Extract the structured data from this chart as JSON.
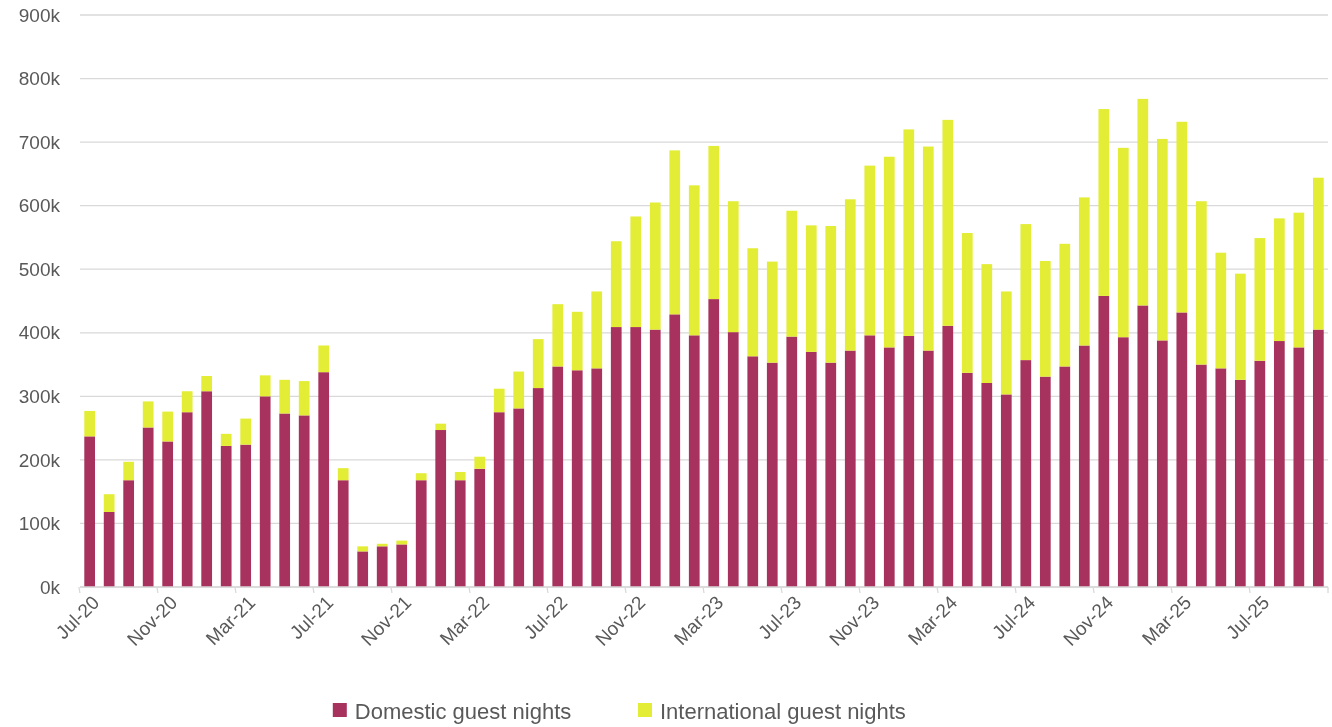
{
  "chart_data": {
    "type": "bar",
    "stacked": true,
    "grid": "y",
    "legend": "bottom",
    "categories": [
      "Jul-20",
      null,
      null,
      null,
      "Nov-20",
      null,
      null,
      null,
      "Mar-21",
      null,
      null,
      null,
      "Jul-21",
      null,
      null,
      null,
      "Nov-21",
      null,
      null,
      null,
      "Mar-22",
      null,
      null,
      null,
      "Jul-22",
      null,
      null,
      null,
      "Nov-22",
      null,
      null,
      null,
      "Mar-23",
      null,
      null,
      null,
      "Jul-23",
      null,
      null,
      null,
      "Nov-23",
      null,
      null,
      null,
      "Mar-24",
      null,
      null,
      null,
      "Jul-24",
      null,
      null,
      null,
      "Nov-24",
      null,
      null,
      null,
      "Mar-25",
      null,
      null,
      null,
      "Jul-25",
      null,
      null,
      null
    ],
    "ylim": [
      0,
      900000
    ],
    "yticks": [
      {
        "value": 0,
        "label": "0k"
      },
      {
        "value": 100000,
        "label": "100k"
      },
      {
        "value": 200000,
        "label": "200k"
      },
      {
        "value": 300000,
        "label": "300k"
      },
      {
        "value": 400000,
        "label": "400k"
      },
      {
        "value": 500000,
        "label": "500k"
      },
      {
        "value": 600000,
        "label": "600k"
      },
      {
        "value": 700000,
        "label": "700k"
      },
      {
        "value": 800000,
        "label": "800k"
      },
      {
        "value": 900000,
        "label": "900k"
      }
    ],
    "series": [
      {
        "name": "Domestic guest nights",
        "color": "#a8325e",
        "values": [
          237000,
          118000,
          168000,
          251000,
          229000,
          275000,
          308000,
          222000,
          224000,
          300000,
          273000,
          270000,
          338000,
          168000,
          56000,
          64000,
          67000,
          168000,
          247000,
          168000,
          186000,
          275000,
          281000,
          313000,
          347000,
          341000,
          344000,
          409000,
          409000,
          405000,
          429000,
          396000,
          453000,
          401000,
          363000,
          353000,
          394000,
          370000,
          353000,
          372000,
          396000,
          377000,
          395000,
          372000,
          411000,
          337000,
          321000,
          303000,
          357000,
          331000,
          347000,
          380000,
          458000,
          393000,
          443000,
          388000,
          432000,
          350000,
          344000,
          326000,
          356000,
          387000,
          377000,
          405000
        ]
      },
      {
        "name": "International guest nights",
        "color": "#e3ed35",
        "values": [
          40000,
          28000,
          29000,
          41000,
          47000,
          33000,
          24000,
          19000,
          41000,
          33000,
          53000,
          54000,
          42000,
          19000,
          8000,
          4000,
          6000,
          11000,
          10000,
          13000,
          19000,
          37000,
          58000,
          77000,
          98000,
          92000,
          121000,
          135000,
          174000,
          200000,
          258000,
          236000,
          241000,
          206000,
          170000,
          159000,
          198000,
          199000,
          215000,
          238000,
          267000,
          300000,
          325000,
          321000,
          324000,
          220000,
          187000,
          162000,
          214000,
          182000,
          193000,
          233000,
          294000,
          298000,
          325000,
          317000,
          300000,
          257000,
          182000,
          167000,
          193000,
          193000,
          212000,
          239000
        ]
      }
    ]
  }
}
